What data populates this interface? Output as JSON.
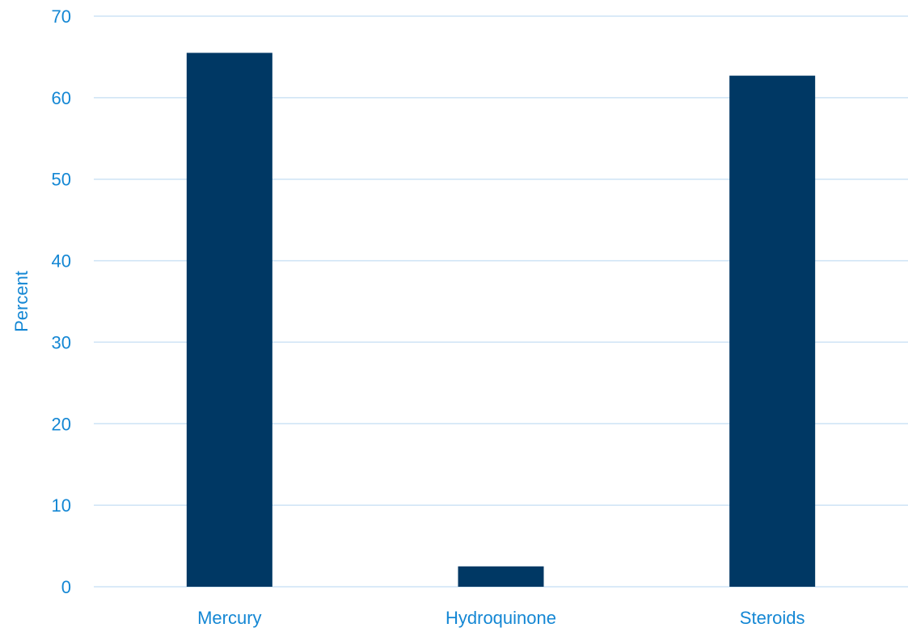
{
  "chart_data": {
    "type": "bar",
    "title": "",
    "xlabel": "",
    "ylabel": "Percent",
    "categories": [
      "Mercury",
      "Hydroquinone",
      "Steroids"
    ],
    "values": [
      65.5,
      2.5,
      62.7
    ],
    "ylim": [
      0,
      70
    ],
    "yticks": [
      0,
      10,
      20,
      30,
      40,
      50,
      60,
      70
    ],
    "grid": true,
    "legend": "none",
    "colors": {
      "bar": "#003864",
      "text": "#1487D4",
      "grid": "#CDE3F5"
    }
  }
}
